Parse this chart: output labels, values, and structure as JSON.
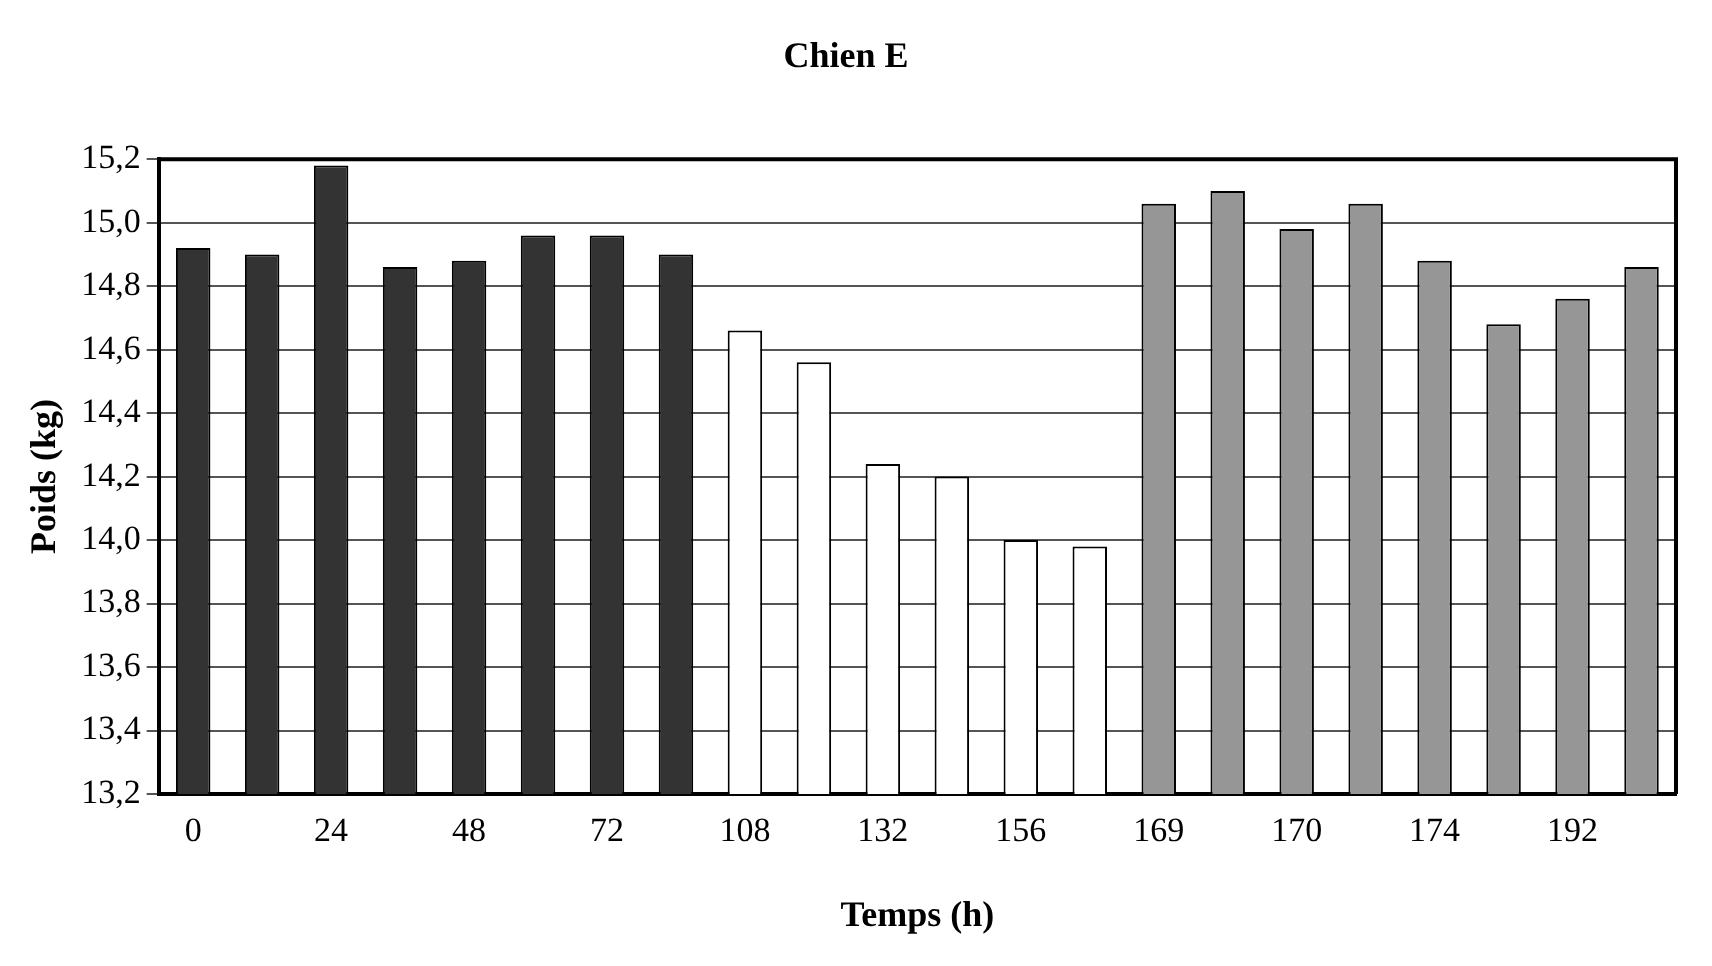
{
  "chart_data": {
    "type": "bar",
    "title": "Chien E",
    "xlabel": "Temps (h)",
    "ylabel": "Poids (kg)",
    "categories": [
      "0",
      null,
      "24",
      null,
      "48",
      null,
      "72",
      null,
      "108",
      null,
      "132",
      null,
      "156",
      null,
      "169",
      null,
      "170",
      null,
      "174",
      null,
      "192",
      null
    ],
    "values": [
      14.92,
      14.9,
      15.18,
      14.86,
      14.88,
      14.96,
      14.96,
      14.9,
      14.66,
      14.56,
      14.24,
      14.2,
      14.0,
      13.98,
      15.06,
      15.1,
      14.98,
      15.06,
      14.88,
      14.68,
      14.76,
      14.86
    ],
    "colors": [
      "#333333",
      "#333333",
      "#333333",
      "#333333",
      "#333333",
      "#333333",
      "#333333",
      "#333333",
      "#ffffff",
      "#ffffff",
      "#ffffff",
      "#ffffff",
      "#ffffff",
      "#ffffff",
      "#969696",
      "#969696",
      "#969696",
      "#969696",
      "#969696",
      "#969696",
      "#969696",
      "#969696"
    ],
    "ylim": [
      13.2,
      15.2
    ],
    "yticks": [
      {
        "value": 13.2,
        "label": "13,2"
      },
      {
        "value": 13.4,
        "label": "13,4"
      },
      {
        "value": 13.6,
        "label": "13,6"
      },
      {
        "value": 13.8,
        "label": "13,8"
      },
      {
        "value": 14.0,
        "label": "14,0"
      },
      {
        "value": 14.2,
        "label": "14,2"
      },
      {
        "value": 14.4,
        "label": "14,4"
      },
      {
        "value": 14.6,
        "label": "14,6"
      },
      {
        "value": 14.8,
        "label": "14,8"
      },
      {
        "value": 15.0,
        "label": "15,0"
      },
      {
        "value": 15.2,
        "label": "15,2"
      }
    ],
    "grid": "y",
    "legend": false
  }
}
